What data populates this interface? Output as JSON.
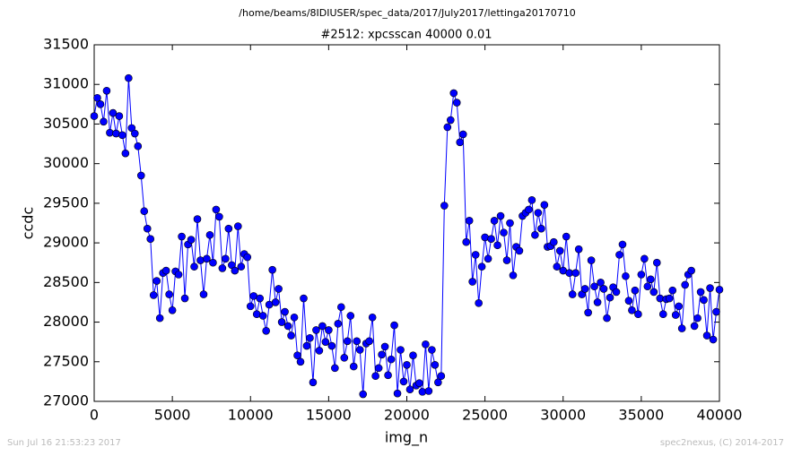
{
  "chart_data": {
    "type": "line",
    "suptitle": "/home/beams/8IDIUSER/spec_data/2017/July2017/lettinga20170710",
    "title": "#2512: xpcsscan 40000 0.01",
    "x_label": "img_n",
    "y_label": "ccdc",
    "footer_left": "Sun Jul 16 21:53:23 2017",
    "footer_right": "spec2nexus, (C) 2014-2017",
    "xlim": [
      0,
      40000
    ],
    "xticks": [
      0,
      5000,
      10000,
      15000,
      20000,
      25000,
      30000,
      35000,
      40000
    ],
    "ylim": [
      27000,
      31500
    ],
    "yticks": [
      27000,
      27500,
      28000,
      28500,
      29000,
      29500,
      30000,
      30500,
      31000,
      31500
    ],
    "x": [
      0,
      200,
      400,
      600,
      800,
      1000,
      1200,
      1400,
      1600,
      1800,
      2000,
      2200,
      2400,
      2600,
      2800,
      3000,
      3200,
      3400,
      3600,
      3800,
      4000,
      4200,
      4400,
      4600,
      4800,
      5000,
      5200,
      5400,
      5600,
      5800,
      6000,
      6200,
      6400,
      6600,
      6800,
      7000,
      7200,
      7400,
      7600,
      7800,
      8000,
      8200,
      8400,
      8600,
      8800,
      9000,
      9200,
      9400,
      9600,
      9800,
      10000,
      10200,
      10400,
      10600,
      10800,
      11000,
      11200,
      11400,
      11600,
      11800,
      12000,
      12200,
      12400,
      12600,
      12800,
      13000,
      13200,
      13400,
      13600,
      13800,
      14000,
      14200,
      14400,
      14600,
      14800,
      15000,
      15200,
      15400,
      15600,
      15800,
      16000,
      16200,
      16400,
      16600,
      16800,
      17000,
      17200,
      17400,
      17600,
      17800,
      18000,
      18200,
      18400,
      18600,
      18800,
      19000,
      19200,
      19400,
      19600,
      19800,
      20000,
      20200,
      20400,
      20600,
      20800,
      21000,
      21200,
      21400,
      21600,
      21800,
      22000,
      22200,
      22400,
      22600,
      22800,
      23000,
      23200,
      23400,
      23600,
      23800,
      24000,
      24200,
      24400,
      24600,
      24800,
      25000,
      25200,
      25400,
      25600,
      25800,
      26000,
      26200,
      26400,
      26600,
      26800,
      27000,
      27200,
      27400,
      27600,
      27800,
      28000,
      28200,
      28400,
      28600,
      28800,
      29000,
      29200,
      29400,
      29600,
      29800,
      30000,
      30200,
      30400,
      30600,
      30800,
      31000,
      31200,
      31400,
      31600,
      31800,
      32000,
      32200,
      32400,
      32600,
      32800,
      33000,
      33200,
      33400,
      33600,
      33800,
      34000,
      34200,
      34400,
      34600,
      34800,
      35000,
      35200,
      35400,
      35600,
      35800,
      36000,
      36200,
      36400,
      36600,
      36800,
      37000,
      37200,
      37400,
      37600,
      37800,
      38000,
      38200,
      38400,
      38600,
      38800,
      39000,
      39200,
      39400,
      39600,
      39800,
      40000
    ],
    "series": [
      {
        "name": "ccdc",
        "color": "#0000ff",
        "values": [
          30600,
          30830,
          30750,
          30530,
          30920,
          30390,
          30640,
          30380,
          30600,
          30360,
          30130,
          31080,
          30450,
          30380,
          30220,
          29850,
          29400,
          29180,
          29050,
          28340,
          28520,
          28050,
          28620,
          28650,
          28350,
          28150,
          28640,
          28600,
          29080,
          28300,
          28980,
          29040,
          28700,
          29300,
          28780,
          28350,
          28800,
          29100,
          28750,
          29420,
          29330,
          28680,
          28800,
          29180,
          28720,
          28650,
          29210,
          28700,
          28860,
          28820,
          28200,
          28330,
          28100,
          28300,
          28080,
          27890,
          28220,
          28660,
          28250,
          28420,
          28000,
          28130,
          27950,
          27830,
          28060,
          27580,
          27500,
          28300,
          27700,
          27800,
          27240,
          27900,
          27640,
          27950,
          27750,
          27900,
          27700,
          27420,
          27980,
          28190,
          27550,
          27760,
          28080,
          27440,
          27760,
          27650,
          27090,
          27730,
          27760,
          28060,
          27320,
          27420,
          27590,
          27690,
          27330,
          27530,
          27960,
          27100,
          27650,
          27250,
          27460,
          27150,
          27580,
          27200,
          27230,
          27120,
          27720,
          27130,
          27650,
          27460,
          27240,
          27320,
          29470,
          30460,
          30550,
          30890,
          30770,
          30270,
          30370,
          29010,
          29280,
          28510,
          28850,
          28240,
          28700,
          29070,
          28800,
          29050,
          29280,
          28970,
          29340,
          29130,
          28780,
          29250,
          28590,
          28950,
          28900,
          29340,
          29380,
          29420,
          29540,
          29100,
          29380,
          29180,
          29480,
          28950,
          28960,
          29010,
          28700,
          28900,
          28650,
          29080,
          28620,
          28350,
          28620,
          28920,
          28350,
          28420,
          28120,
          28780,
          28450,
          28250,
          28500,
          28420,
          28050,
          28310,
          28440,
          28380,
          28850,
          28980,
          28580,
          28270,
          28150,
          28400,
          28100,
          28600,
          28800,
          28450,
          28540,
          28380,
          28750,
          28300,
          28100,
          28290,
          28300,
          28400,
          28090,
          28200,
          27920,
          28470,
          28600,
          28650,
          27950,
          28050,
          28380,
          28280,
          27830,
          28430,
          27780,
          28130,
          28410
        ]
      }
    ]
  }
}
